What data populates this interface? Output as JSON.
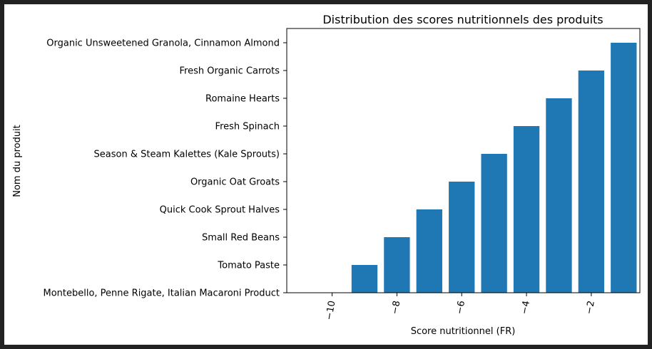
{
  "chart_data": {
    "type": "bar",
    "title": "Distribution des scores nutritionnels des produits",
    "xlabel": "Score nutritionnel (FR)",
    "ylabel": "Nom du produit",
    "categories": [
      "Montebello, Penne Rigate, Italian Macaroni Product",
      "Tomato Paste",
      "Small Red Beans",
      "Quick Cook Sprout Halves",
      "Organic Oat Groats",
      "Season & Steam Kalettes (Kale Sprouts)",
      "Fresh Spinach",
      "Romaine Hearts",
      "Fresh Organic Carrots",
      "Organic Unsweetened Granola, Cinnamon Almond"
    ],
    "x": [
      -10,
      -9,
      -8,
      -7,
      -6,
      -5,
      -4,
      -3,
      -2,
      -1
    ],
    "xlim": [
      -11.4,
      -0.5
    ],
    "x_ticks": [
      -10,
      -8,
      -6,
      -4,
      -2
    ],
    "x_tick_labels": [
      "−10",
      "−8",
      "−6",
      "−4",
      "−2"
    ],
    "grid": false,
    "bar_color": "#1f77b4"
  }
}
